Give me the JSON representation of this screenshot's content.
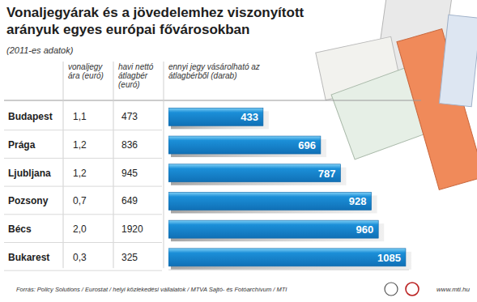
{
  "chart_data": {
    "type": "bar",
    "orientation": "horizontal",
    "title": "Vonaljegyárak és a jövedelemhez viszonyított arányuk egyes európai fővárosokban",
    "subtitle": "(2011-es adatok)",
    "column_headers": [
      "vonaljegy ára (euró)",
      "havi nettó átlagbér (euró)",
      "ennyi jegy vásárolható az átlagbérből (darab)"
    ],
    "categories": [
      "Budapest",
      "Prága",
      "Ljubljana",
      "Pozsony",
      "Bécs",
      "Bukarest"
    ],
    "ticket_price": [
      1.1,
      1.2,
      1.2,
      0.7,
      2.0,
      0.3
    ],
    "ticket_price_labels": [
      "1,1",
      "1,2",
      "1,2",
      "0,7",
      "2,0",
      "0,3"
    ],
    "monthly_wage": [
      473,
      836,
      945,
      649,
      1920,
      325
    ],
    "values": [
      433,
      696,
      787,
      928,
      960,
      1085
    ],
    "color": "#1b8fd8",
    "xlim": [
      0,
      1100
    ],
    "data_labels": true,
    "tick_labels": false,
    "grid": false,
    "source": "Forrás: Policy Solutions / Eurostat / helyi közlekedési vállalatok / MTVA Sajtó- és Fotóarchívum / MTI",
    "website": "www.mti.hu"
  }
}
